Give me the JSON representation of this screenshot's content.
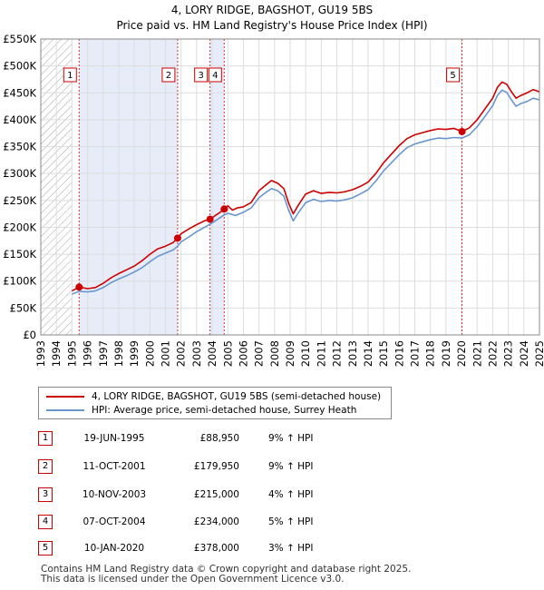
{
  "title_line1": "4, LORY RIDGE, BAGSHOT, GU19 5BS",
  "title_line2": "Price paid vs. HM Land Registry's House Price Index (HPI)",
  "legend": {
    "red_label": "4, LORY RIDGE, BAGSHOT, GU19 5BS (semi-detached house)",
    "blue_label": "HPI: Average price, semi-detached house, Surrey Heath"
  },
  "colors": {
    "red": "#cc0000",
    "blue": "#6a96cf",
    "shade": "#e6ecf8",
    "grid": "#dddddd"
  },
  "sales": [
    {
      "num": "1",
      "date": "19-JUN-1995",
      "price": "£88,950",
      "hpi": "9% ↑ HPI"
    },
    {
      "num": "2",
      "date": "11-OCT-2001",
      "price": "£179,950",
      "hpi": "9% ↑ HPI"
    },
    {
      "num": "3",
      "date": "10-NOV-2003",
      "price": "£215,000",
      "hpi": "4% ↑ HPI"
    },
    {
      "num": "4",
      "date": "07-OCT-2004",
      "price": "£234,000",
      "hpi": "5% ↑ HPI"
    },
    {
      "num": "5",
      "date": "10-JAN-2020",
      "price": "£378,000",
      "hpi": "3% ↑ HPI"
    }
  ],
  "footer_line1": "Contains HM Land Registry data © Crown copyright and database right 2025.",
  "footer_line2": "This data is licensed under the Open Government Licence v3.0.",
  "chart_data": {
    "type": "line",
    "x_range": [
      1993,
      2025
    ],
    "y_range": [
      0,
      550000
    ],
    "y_ticks": [
      0,
      50000,
      100000,
      150000,
      200000,
      250000,
      300000,
      350000,
      400000,
      450000,
      500000,
      550000
    ],
    "y_tick_labels": [
      "£0",
      "£50K",
      "£100K",
      "£150K",
      "£200K",
      "£250K",
      "£300K",
      "£350K",
      "£400K",
      "£450K",
      "£500K",
      "£550K"
    ],
    "x_ticks": [
      "1993",
      "1994",
      "1995",
      "1996",
      "1997",
      "1998",
      "1999",
      "2000",
      "2001",
      "2002",
      "2003",
      "2004",
      "2005",
      "2006",
      "2007",
      "2008",
      "2009",
      "2010",
      "2011",
      "2012",
      "2013",
      "2014",
      "2015",
      "2016",
      "2017",
      "2018",
      "2019",
      "2020",
      "2021",
      "2022",
      "2023",
      "2024",
      "2025"
    ],
    "hatched_until": 1995.0,
    "shaded_spans": [
      [
        1995.46,
        2001.78
      ],
      [
        2003.86,
        2004.77
      ]
    ],
    "grid": true,
    "series": [
      {
        "name": "4, LORY RIDGE, BAGSHOT, GU19 5BS (semi-detached house)",
        "color": "#cc0000",
        "points": [
          [
            1995.0,
            82000
          ],
          [
            1995.46,
            88950
          ],
          [
            1996.0,
            86000
          ],
          [
            1996.5,
            88000
          ],
          [
            1997.0,
            96000
          ],
          [
            1997.5,
            106000
          ],
          [
            1998.0,
            114000
          ],
          [
            1998.5,
            121000
          ],
          [
            1999.0,
            128000
          ],
          [
            1999.5,
            138000
          ],
          [
            2000.0,
            150000
          ],
          [
            2000.5,
            160000
          ],
          [
            2001.0,
            165000
          ],
          [
            2001.5,
            172000
          ],
          [
            2001.78,
            179950
          ],
          [
            2002.0,
            188000
          ],
          [
            2002.5,
            197000
          ],
          [
            2003.0,
            205000
          ],
          [
            2003.5,
            212000
          ],
          [
            2003.86,
            215000
          ],
          [
            2004.2,
            222000
          ],
          [
            2004.5,
            228000
          ],
          [
            2004.77,
            234000
          ],
          [
            2005.0,
            240000
          ],
          [
            2005.3,
            232000
          ],
          [
            2005.6,
            236000
          ],
          [
            2006.0,
            238000
          ],
          [
            2006.5,
            246000
          ],
          [
            2007.0,
            268000
          ],
          [
            2007.5,
            280000
          ],
          [
            2007.8,
            287000
          ],
          [
            2008.2,
            282000
          ],
          [
            2008.6,
            272000
          ],
          [
            2008.9,
            245000
          ],
          [
            2009.2,
            225000
          ],
          [
            2009.5,
            240000
          ],
          [
            2010.0,
            262000
          ],
          [
            2010.5,
            268000
          ],
          [
            2011.0,
            263000
          ],
          [
            2011.5,
            265000
          ],
          [
            2012.0,
            264000
          ],
          [
            2012.5,
            266000
          ],
          [
            2013.0,
            270000
          ],
          [
            2013.5,
            276000
          ],
          [
            2014.0,
            284000
          ],
          [
            2014.5,
            300000
          ],
          [
            2015.0,
            320000
          ],
          [
            2015.5,
            336000
          ],
          [
            2016.0,
            352000
          ],
          [
            2016.5,
            365000
          ],
          [
            2017.0,
            372000
          ],
          [
            2017.5,
            376000
          ],
          [
            2018.0,
            380000
          ],
          [
            2018.5,
            383000
          ],
          [
            2019.0,
            382000
          ],
          [
            2019.5,
            384000
          ],
          [
            2020.03,
            378000
          ],
          [
            2020.5,
            385000
          ],
          [
            2021.0,
            400000
          ],
          [
            2021.5,
            420000
          ],
          [
            2022.0,
            440000
          ],
          [
            2022.3,
            460000
          ],
          [
            2022.6,
            470000
          ],
          [
            2022.9,
            466000
          ],
          [
            2023.2,
            452000
          ],
          [
            2023.5,
            440000
          ],
          [
            2023.8,
            445000
          ],
          [
            2024.2,
            450000
          ],
          [
            2024.6,
            456000
          ],
          [
            2025.0,
            452000
          ]
        ]
      },
      {
        "name": "HPI: Average price, semi-detached house, Surrey Heath",
        "color": "#6a96cf",
        "points": [
          [
            1995.0,
            76000
          ],
          [
            1995.46,
            81000
          ],
          [
            1996.0,
            80000
          ],
          [
            1996.5,
            82000
          ],
          [
            1997.0,
            88000
          ],
          [
            1997.5,
            97000
          ],
          [
            1998.0,
            104000
          ],
          [
            1998.5,
            110000
          ],
          [
            1999.0,
            117000
          ],
          [
            1999.5,
            125000
          ],
          [
            2000.0,
            136000
          ],
          [
            2000.5,
            146000
          ],
          [
            2001.0,
            152000
          ],
          [
            2001.5,
            158000
          ],
          [
            2001.78,
            165000
          ],
          [
            2002.0,
            173000
          ],
          [
            2002.5,
            182000
          ],
          [
            2003.0,
            192000
          ],
          [
            2003.5,
            200000
          ],
          [
            2003.86,
            206000
          ],
          [
            2004.2,
            212000
          ],
          [
            2004.5,
            218000
          ],
          [
            2004.77,
            223000
          ],
          [
            2005.0,
            226000
          ],
          [
            2005.5,
            222000
          ],
          [
            2006.0,
            228000
          ],
          [
            2006.5,
            236000
          ],
          [
            2007.0,
            255000
          ],
          [
            2007.5,
            266000
          ],
          [
            2007.8,
            272000
          ],
          [
            2008.2,
            268000
          ],
          [
            2008.6,
            258000
          ],
          [
            2008.9,
            232000
          ],
          [
            2009.2,
            212000
          ],
          [
            2009.5,
            226000
          ],
          [
            2010.0,
            246000
          ],
          [
            2010.5,
            252000
          ],
          [
            2011.0,
            248000
          ],
          [
            2011.5,
            250000
          ],
          [
            2012.0,
            249000
          ],
          [
            2012.5,
            251000
          ],
          [
            2013.0,
            255000
          ],
          [
            2013.5,
            262000
          ],
          [
            2014.0,
            270000
          ],
          [
            2014.5,
            286000
          ],
          [
            2015.0,
            305000
          ],
          [
            2015.5,
            320000
          ],
          [
            2016.0,
            335000
          ],
          [
            2016.5,
            348000
          ],
          [
            2017.0,
            355000
          ],
          [
            2017.5,
            359000
          ],
          [
            2018.0,
            363000
          ],
          [
            2018.5,
            366000
          ],
          [
            2019.0,
            365000
          ],
          [
            2019.5,
            367000
          ],
          [
            2020.03,
            366000
          ],
          [
            2020.5,
            372000
          ],
          [
            2021.0,
            387000
          ],
          [
            2021.5,
            406000
          ],
          [
            2022.0,
            426000
          ],
          [
            2022.3,
            445000
          ],
          [
            2022.6,
            455000
          ],
          [
            2022.9,
            451000
          ],
          [
            2023.2,
            437000
          ],
          [
            2023.5,
            425000
          ],
          [
            2023.8,
            430000
          ],
          [
            2024.2,
            434000
          ],
          [
            2024.6,
            440000
          ],
          [
            2025.0,
            437000
          ]
        ]
      }
    ],
    "sale_points": [
      {
        "label": "1",
        "x": 1995.46,
        "y": 88950
      },
      {
        "label": "2",
        "x": 2001.78,
        "y": 179950
      },
      {
        "label": "3",
        "x": 2003.86,
        "y": 215000
      },
      {
        "label": "4",
        "x": 2004.77,
        "y": 234000
      },
      {
        "label": "5",
        "x": 2020.03,
        "y": 378000
      }
    ]
  }
}
